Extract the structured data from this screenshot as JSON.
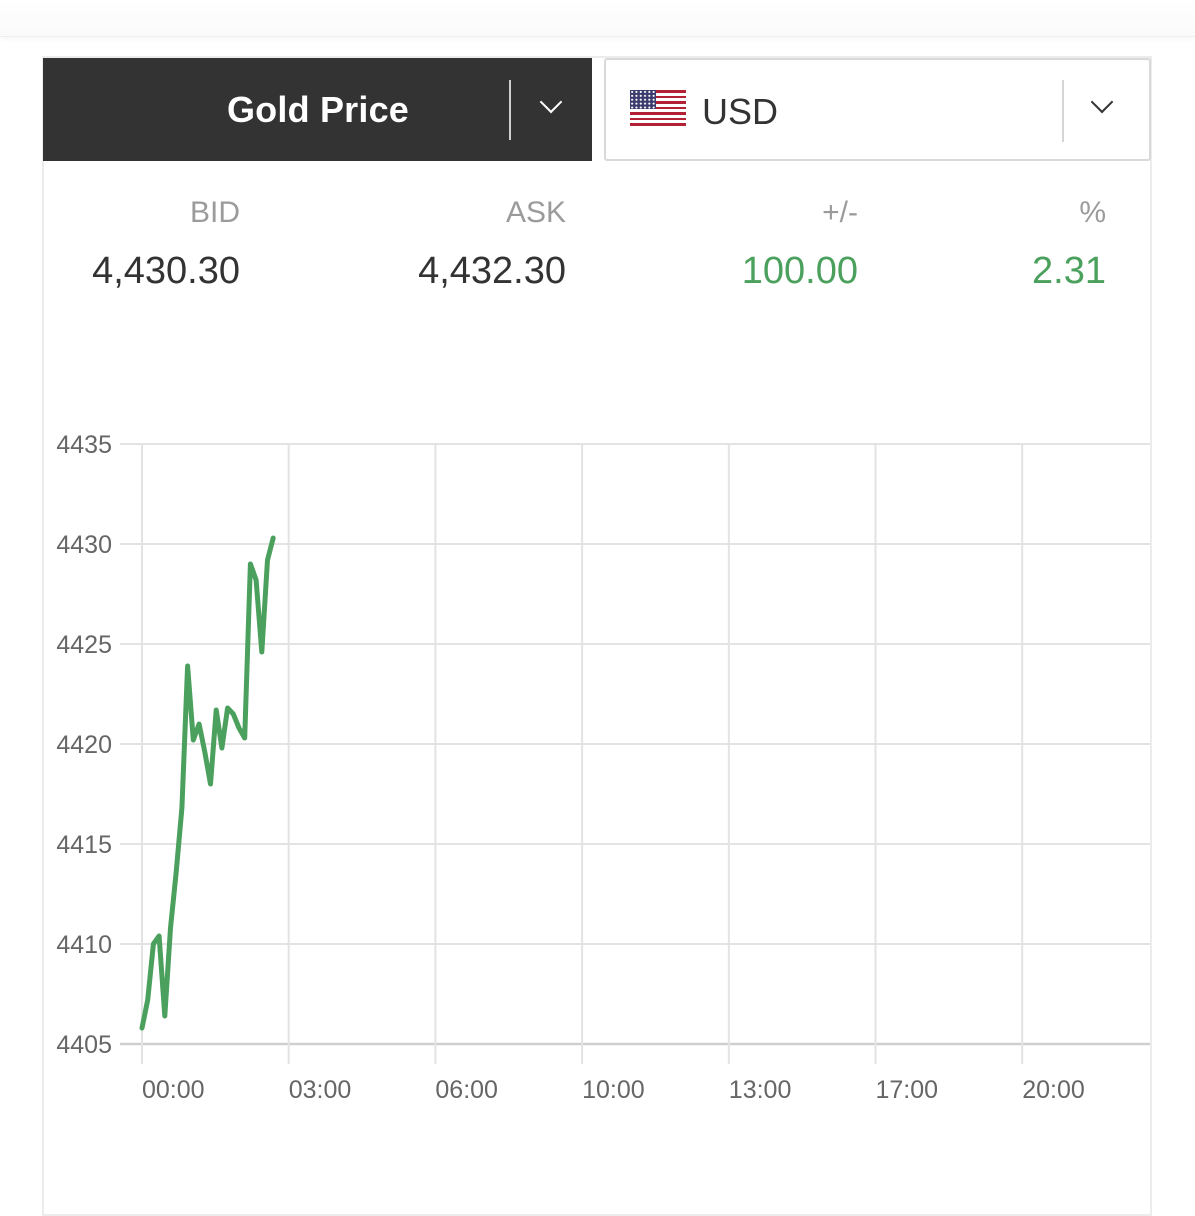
{
  "selector": {
    "metal_label": "Gold Price",
    "currency_code": "USD",
    "flag_icon": "us-flag-icon"
  },
  "quote": {
    "bid_label": "BID",
    "bid_value": "4,430.30",
    "ask_label": "ASK",
    "ask_value": "4,432.30",
    "change_label": "+/-",
    "change_value": "100.00",
    "percent_label": "%",
    "percent_value": "2.31",
    "positive_color": "#4aa05c"
  },
  "chart_data": {
    "type": "line",
    "title": "",
    "xlabel": "",
    "ylabel": "",
    "ylim": [
      4405,
      4435
    ],
    "yticks": [
      4405,
      4410,
      4415,
      4420,
      4425,
      4430,
      4435
    ],
    "xticks": [
      "00:00",
      "03:00",
      "06:00",
      "10:00",
      "13:00",
      "17:00",
      "20:00"
    ],
    "grid": true,
    "line_color": "#4aa05c",
    "series": [
      {
        "name": "",
        "x": [
          "00:00",
          "00:07",
          "00:14",
          "00:21",
          "00:28",
          "00:35",
          "00:42",
          "00:49",
          "00:56",
          "01:03",
          "01:10",
          "01:17",
          "01:24",
          "01:31",
          "01:38",
          "01:45",
          "01:52",
          "01:59",
          "02:06",
          "02:13",
          "02:20",
          "02:27",
          "02:34",
          "02:41",
          "02:48",
          "02:55",
          "03:02",
          "03:09"
        ],
        "values": [
          4405.8,
          4407.2,
          4410.0,
          4410.4,
          4406.4,
          4410.8,
          4413.6,
          4416.8,
          4423.9,
          4420.2,
          4421.0,
          4419.6,
          4418.0,
          4421.7,
          4419.8,
          4421.8,
          4421.5,
          4420.8,
          4420.3,
          4429.0,
          4428.2,
          4424.6,
          4429.2,
          4430.3,
          4430.3,
          4430.3,
          4430.3,
          4430.3
        ]
      }
    ]
  }
}
